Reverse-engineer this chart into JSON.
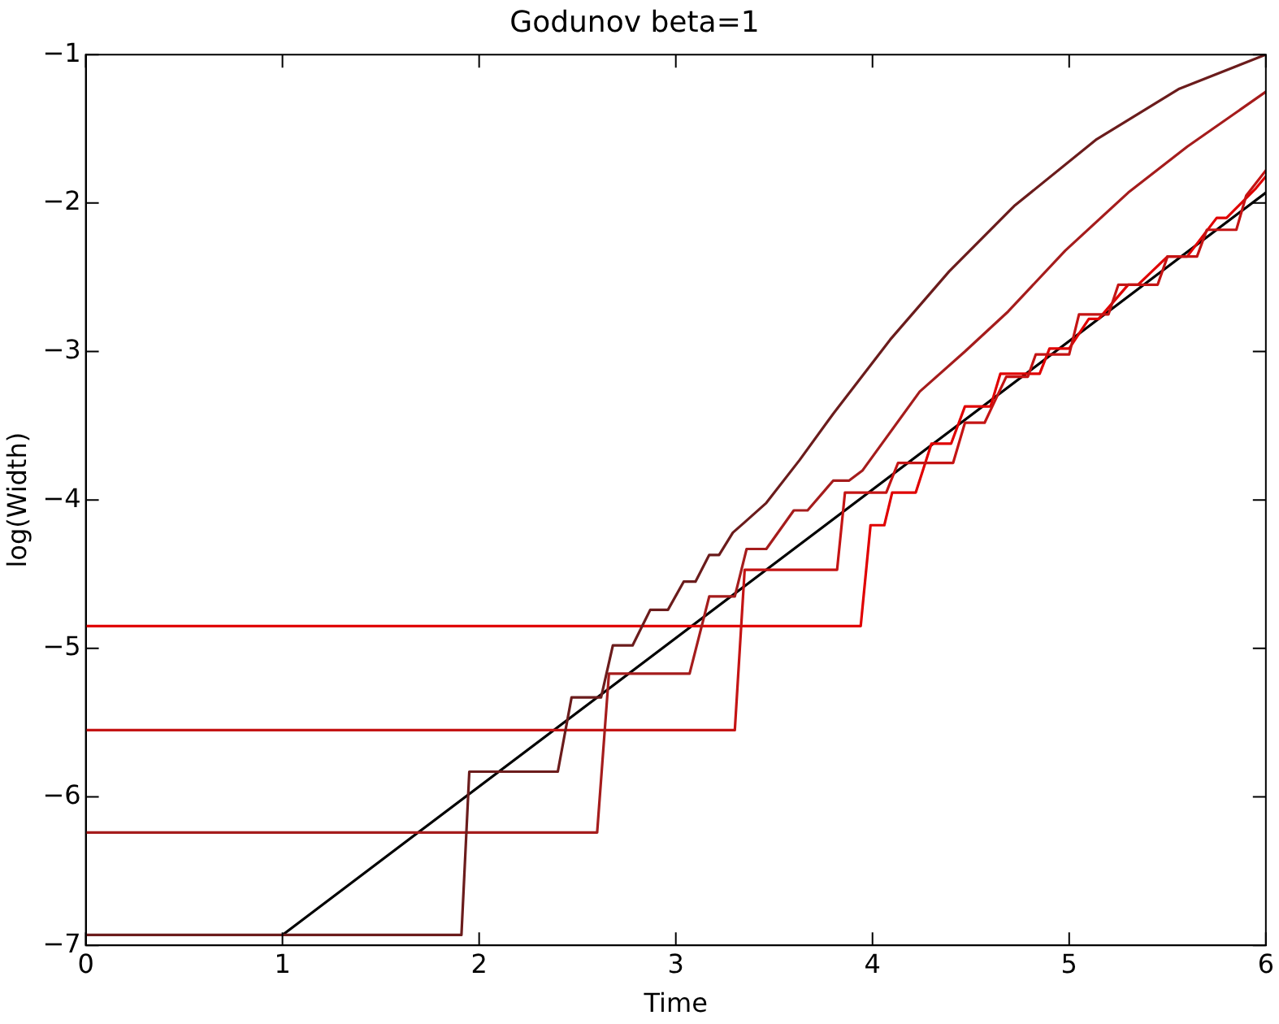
{
  "chart_data": {
    "type": "line",
    "title": "Godunov beta=1",
    "xlabel": "Time",
    "ylabel": "log(Width)",
    "xlim": [
      0,
      6
    ],
    "xticks": [
      0,
      1,
      2,
      3,
      4,
      5,
      6
    ],
    "ylim": [
      -7,
      -1
    ],
    "yticks": [
      {
        "value": -7,
        "label": "−7"
      },
      {
        "value": -6,
        "label": "−6"
      },
      {
        "value": -5,
        "label": "−5"
      },
      {
        "value": -4,
        "label": "−4"
      },
      {
        "value": -3,
        "label": "−3"
      },
      {
        "value": -2,
        "label": "−2"
      },
      {
        "value": -1,
        "label": "−1"
      }
    ],
    "grid": false,
    "legend": false,
    "marker": "none",
    "line_style": "solid",
    "series": [
      {
        "color": "#6b1c1c",
        "x": [
          0,
          1.91,
          1.95,
          2.4,
          2.47,
          2.62,
          2.68,
          2.78,
          2.87,
          2.96,
          3.04,
          3.1,
          3.17,
          3.22,
          3.29,
          3.35,
          3.46,
          3.63,
          3.8,
          4.09,
          4.39,
          4.72,
          5.14,
          5.56,
          6
        ],
        "values": [
          -6.93,
          -6.93,
          -5.83,
          -5.83,
          -5.33,
          -5.33,
          -4.98,
          -4.98,
          -4.74,
          -4.74,
          -4.55,
          -4.55,
          -4.37,
          -4.37,
          -4.22,
          -4.15,
          -4.02,
          -3.73,
          -3.42,
          -2.92,
          -2.46,
          -2.02,
          -1.57,
          -1.23,
          -1
        ]
      },
      {
        "color": "#a51c1c",
        "x": [
          0,
          2.6,
          2.66,
          3.07,
          3.17,
          3.3,
          3.36,
          3.46,
          3.6,
          3.67,
          3.8,
          3.88,
          3.95,
          4.24,
          4.47,
          4.69,
          4.98,
          5.3,
          5.6,
          6
        ],
        "values": [
          -6.24,
          -6.24,
          -5.17,
          -5.17,
          -4.65,
          -4.65,
          -4.33,
          -4.33,
          -4.07,
          -4.07,
          -3.87,
          -3.87,
          -3.8,
          -3.27,
          -3.0,
          -2.73,
          -2.32,
          -1.93,
          -1.62,
          -1.25
        ]
      },
      {
        "color": "#c41414",
        "x": [
          0,
          3.3,
          3.35,
          3.82,
          3.86,
          4.07,
          4.13,
          4.41,
          4.47,
          4.57,
          4.68,
          4.79,
          4.83,
          5.0,
          5.05,
          5.2,
          5.25,
          5.45,
          5.5,
          5.65,
          5.7,
          5.85,
          5.9,
          6
        ],
        "values": [
          -5.55,
          -5.55,
          -4.47,
          -4.47,
          -3.95,
          -3.95,
          -3.75,
          -3.75,
          -3.48,
          -3.48,
          -3.17,
          -3.17,
          -3.02,
          -3.02,
          -2.75,
          -2.75,
          -2.55,
          -2.55,
          -2.36,
          -2.36,
          -2.18,
          -2.18,
          -1.95,
          -1.78
        ]
      },
      {
        "color": "#e00000",
        "x": [
          0,
          3.94,
          3.99,
          4.06,
          4.1,
          4.22,
          4.3,
          4.4,
          4.47,
          4.6,
          4.65,
          4.85,
          4.9,
          5.0,
          5.1,
          5.15,
          5.3,
          5.35,
          5.5,
          5.6,
          5.75,
          5.8,
          5.95,
          6
        ],
        "values": [
          -4.85,
          -4.85,
          -4.17,
          -4.17,
          -3.95,
          -3.95,
          -3.62,
          -3.62,
          -3.37,
          -3.37,
          -3.15,
          -3.15,
          -2.98,
          -2.98,
          -2.78,
          -2.78,
          -2.55,
          -2.55,
          -2.36,
          -2.36,
          -2.1,
          -2.1,
          -1.9,
          -1.82
        ]
      },
      {
        "color": "#000000",
        "x": [
          1,
          6
        ],
        "values": [
          -6.93,
          -1.93
        ]
      }
    ]
  }
}
